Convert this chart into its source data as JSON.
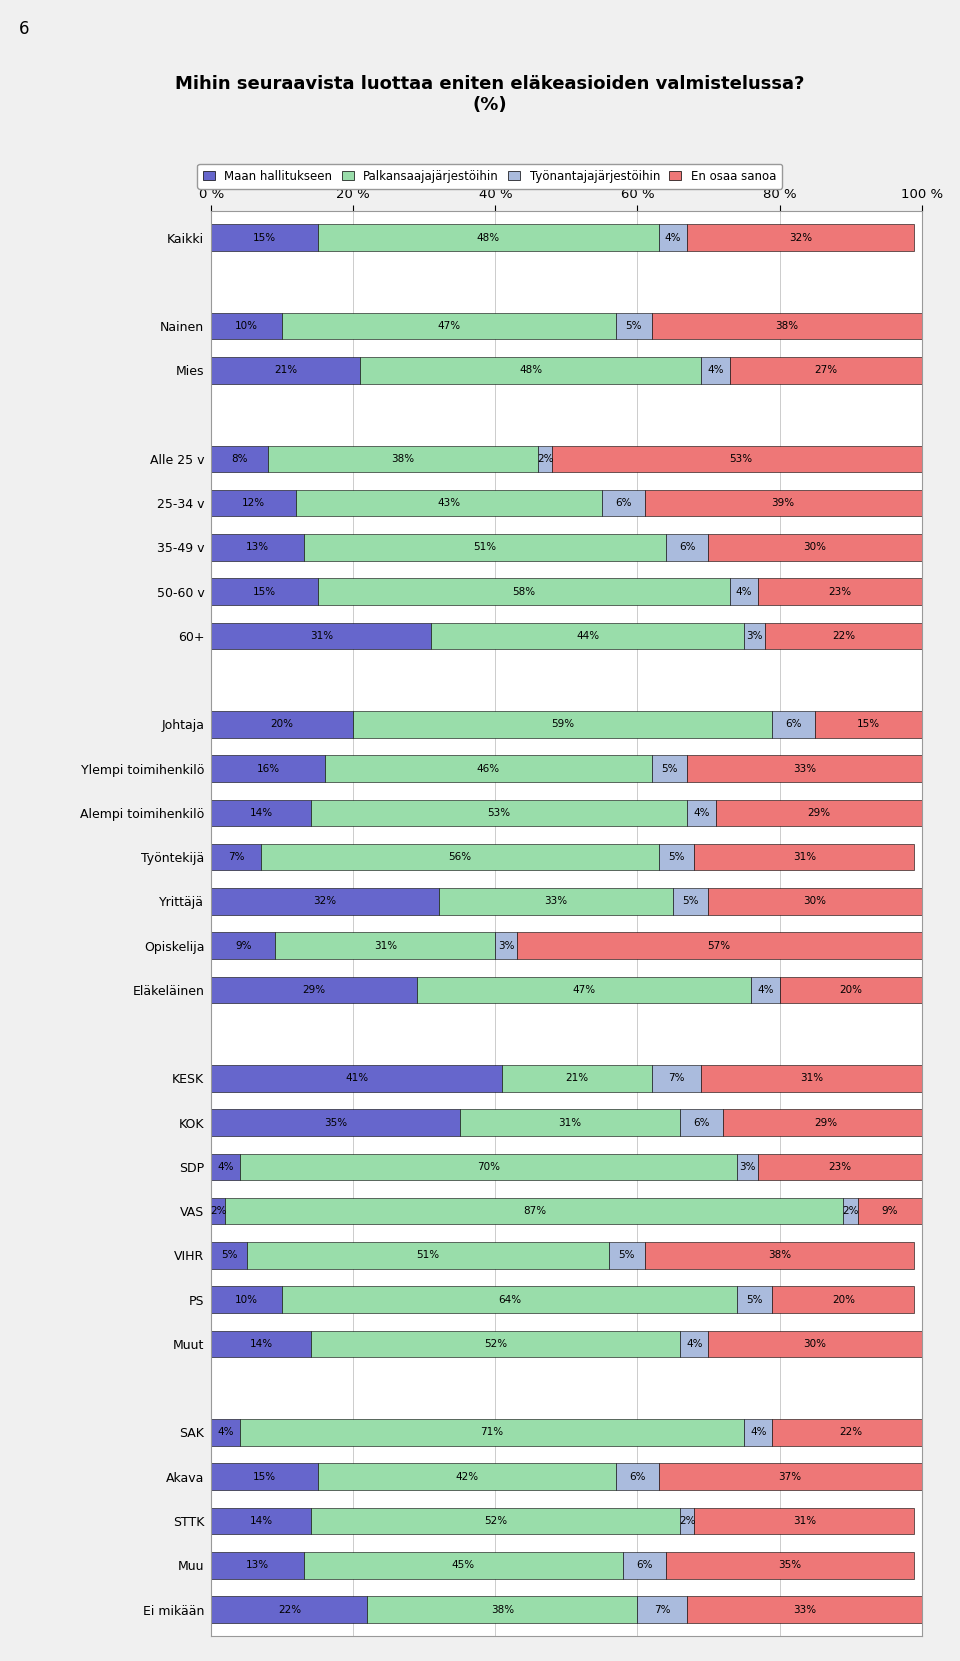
{
  "title": "Mihin seuraavista luottaa eniten eläkeasioiden valmistelussa?\n(%)",
  "page_number": "6",
  "legend_labels": [
    "Maan hallitukseen",
    "Palkansaajajärjestöihin",
    "Työnantajajärjestöihin",
    "En osaa sanoa"
  ],
  "colors": [
    "#6666cc",
    "#99ddaa",
    "#aabbdd",
    "#ee7777"
  ],
  "categories": [
    "Kaikki",
    "",
    "Nainen",
    "Mies",
    "",
    "Alle 25 v",
    "25-34 v",
    "35-49 v",
    "50-60 v",
    "60+",
    "",
    "Johtaja",
    "Ylempi toimihenkilö",
    "Alempi toimihenkilö",
    "Työntekijä",
    "Yrittäjä",
    "Opiskelija",
    "Eläkeläinen",
    "",
    "KESK",
    "KOK",
    "SDP",
    "VAS",
    "VIHR",
    "PS",
    "Muut",
    "",
    "SAK",
    "Akava",
    "STTK",
    "Muu",
    "Ei mikään"
  ],
  "data": [
    [
      15,
      48,
      4,
      32
    ],
    [
      0,
      0,
      0,
      0
    ],
    [
      10,
      47,
      5,
      38
    ],
    [
      21,
      48,
      4,
      27
    ],
    [
      0,
      0,
      0,
      0
    ],
    [
      8,
      38,
      2,
      53
    ],
    [
      12,
      43,
      6,
      39
    ],
    [
      13,
      51,
      6,
      30
    ],
    [
      15,
      58,
      4,
      23
    ],
    [
      31,
      44,
      3,
      22
    ],
    [
      0,
      0,
      0,
      0
    ],
    [
      20,
      59,
      6,
      15
    ],
    [
      16,
      46,
      5,
      33
    ],
    [
      14,
      53,
      4,
      29
    ],
    [
      7,
      56,
      5,
      31
    ],
    [
      32,
      33,
      5,
      30
    ],
    [
      9,
      31,
      3,
      57
    ],
    [
      29,
      47,
      4,
      20
    ],
    [
      0,
      0,
      0,
      0
    ],
    [
      41,
      21,
      7,
      31
    ],
    [
      35,
      31,
      6,
      29
    ],
    [
      4,
      70,
      3,
      23
    ],
    [
      2,
      87,
      2,
      9
    ],
    [
      5,
      51,
      5,
      38
    ],
    [
      10,
      64,
      5,
      20
    ],
    [
      14,
      52,
      4,
      30
    ],
    [
      0,
      0,
      0,
      0
    ],
    [
      4,
      71,
      4,
      22
    ],
    [
      15,
      42,
      6,
      37
    ],
    [
      14,
      52,
      2,
      31
    ],
    [
      13,
      45,
      6,
      35
    ],
    [
      22,
      38,
      7,
      33
    ]
  ],
  "xlim": [
    0,
    100
  ],
  "xticks": [
    0,
    20,
    40,
    60,
    80,
    100
  ],
  "xtick_labels": [
    "0 %",
    "20 %",
    "40 %",
    "60 %",
    "80 %",
    "100 %"
  ],
  "bar_height": 0.6,
  "background_color": "#f0f0f0",
  "chart_background": "#ffffff",
  "border_color": "#999999"
}
